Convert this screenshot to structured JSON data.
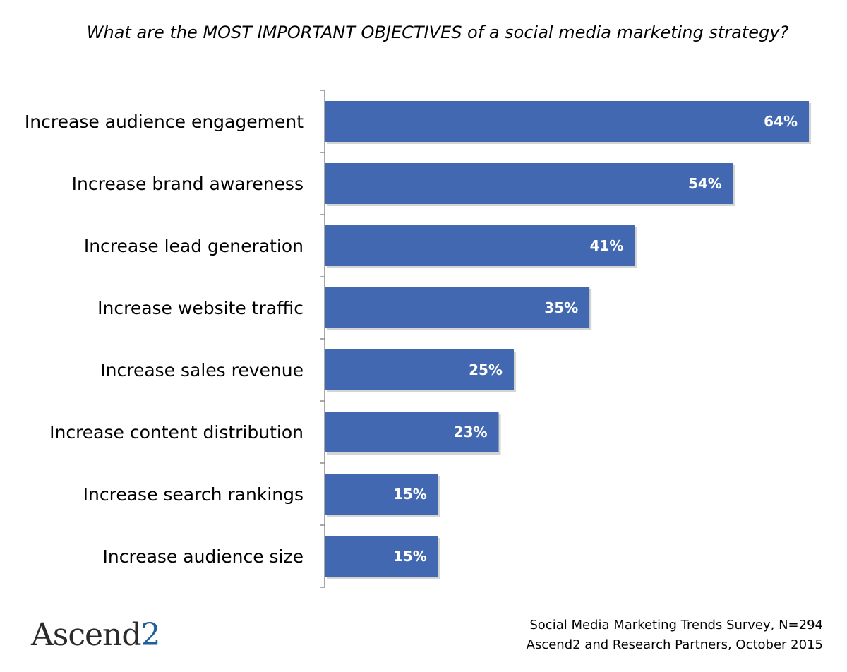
{
  "chart_data": {
    "type": "bar",
    "orientation": "horizontal",
    "title": "What are the MOST IMPORTANT OBJECTIVES of a social media marketing strategy?",
    "categories": [
      "Increase audience engagement",
      "Increase brand awareness",
      "Increase lead generation",
      "Increase website traffic",
      "Increase sales revenue",
      "Increase content distribution",
      "Increase search rankings",
      "Increase audience size"
    ],
    "values": [
      64,
      54,
      41,
      35,
      25,
      23,
      15,
      15
    ],
    "value_labels": [
      "64%",
      "54%",
      "41%",
      "35%",
      "25%",
      "23%",
      "15%",
      "15%"
    ],
    "unit": "%",
    "xlim": [
      0,
      70
    ],
    "grid": false,
    "legend": "none",
    "bar_color": "#4168B0"
  },
  "source": {
    "line1": "Social Media Marketing Trends Survey, N=294",
    "line2": "Ascend2 and Research Partners, October 2015"
  },
  "logo": {
    "text": "Ascend",
    "suffix": "2"
  }
}
